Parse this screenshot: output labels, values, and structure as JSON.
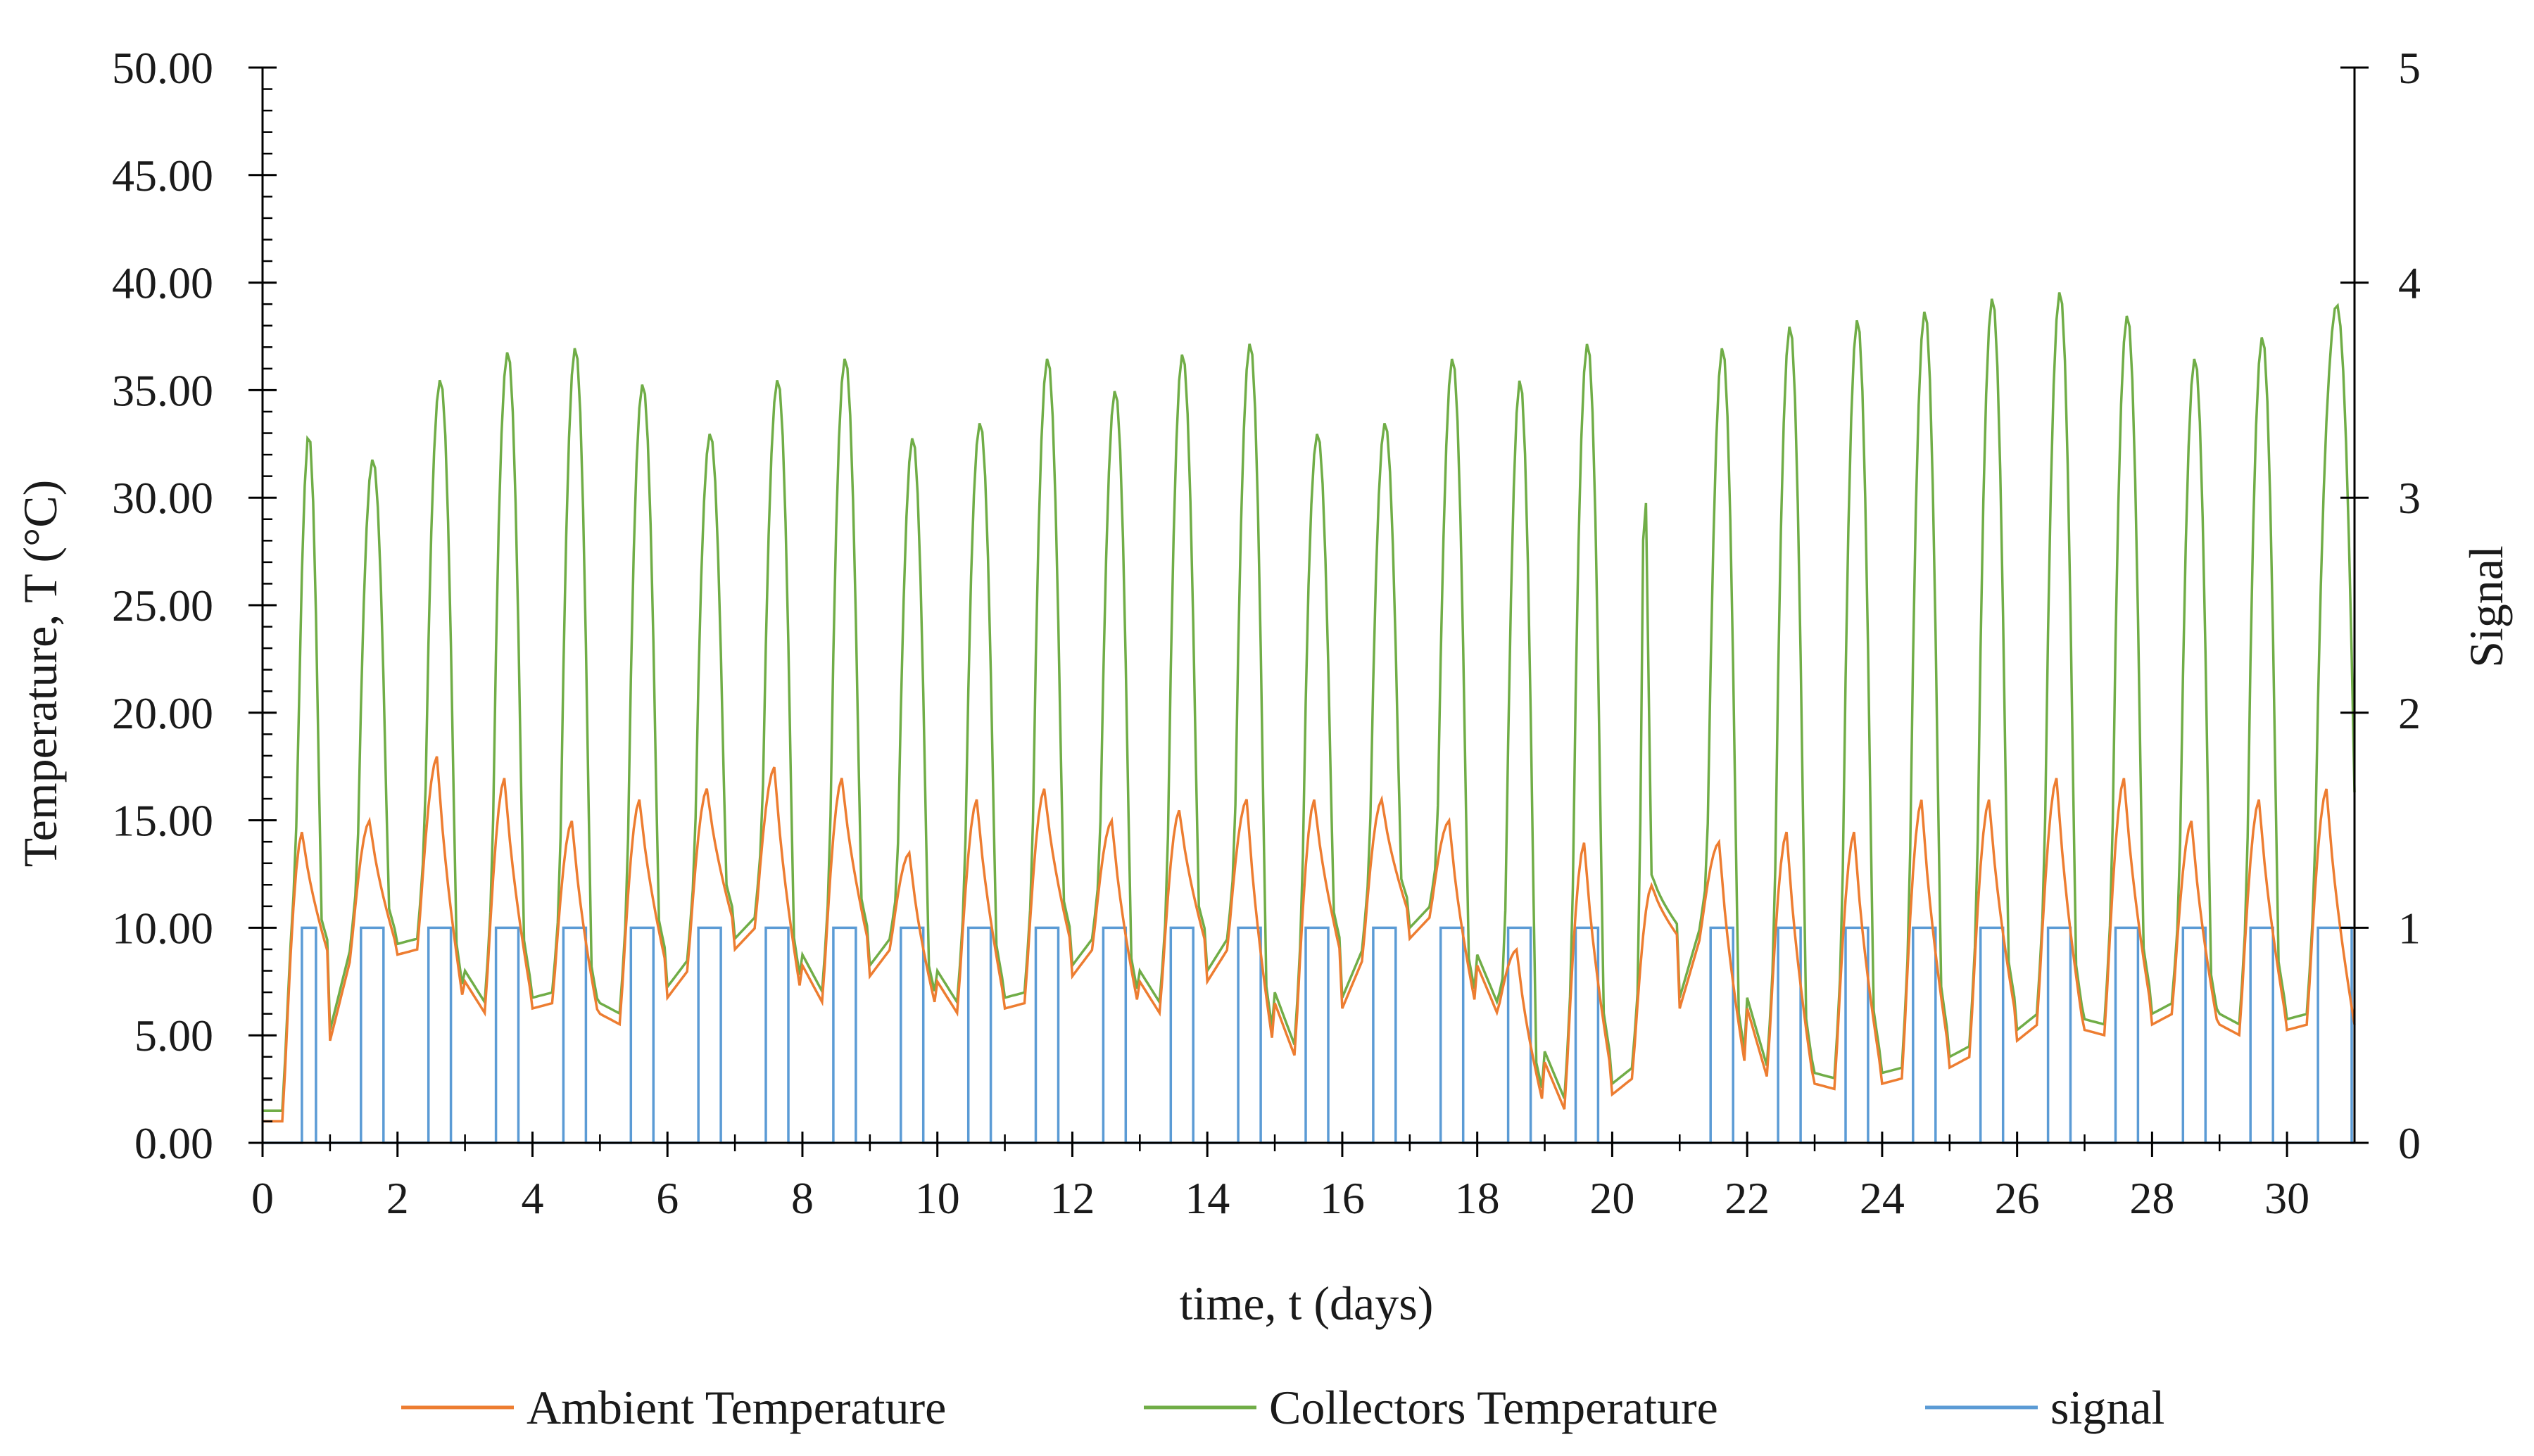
{
  "chart_data": {
    "type": "line",
    "title": "",
    "xlabel": "time, t (days)",
    "ylabel": "Temperature, T (°C)",
    "y2label": "Signal",
    "xlim": [
      0,
      31
    ],
    "ylim": [
      0,
      50
    ],
    "y2lim": [
      0,
      5
    ],
    "x_ticks": [
      0,
      2,
      4,
      6,
      8,
      10,
      12,
      14,
      16,
      18,
      20,
      22,
      24,
      26,
      28,
      30
    ],
    "x_tick_labels": [
      "0",
      "2",
      "4",
      "6",
      "8",
      "10",
      "12",
      "14",
      "16",
      "18",
      "20",
      "22",
      "24",
      "26",
      "28",
      "30"
    ],
    "y_ticks": [
      0,
      5,
      10,
      15,
      20,
      25,
      30,
      35,
      40,
      45,
      50
    ],
    "y_tick_labels": [
      "0.00",
      "5.00",
      "10.00",
      "15.00",
      "20.00",
      "25.00",
      "30.00",
      "35.00",
      "40.00",
      "45.00",
      "50.00"
    ],
    "y2_ticks": [
      0,
      1,
      2,
      3,
      4,
      5
    ],
    "y2_tick_labels": [
      "0",
      "1",
      "2",
      "3",
      "4",
      "5"
    ],
    "grid": false,
    "legend_position": "bottom",
    "colors": {
      "ambient": "#ED7D31",
      "collectors": "#70AD47",
      "signal": "#5B9BD5",
      "axis": "#000000"
    },
    "daily": [
      {
        "day": 0,
        "amb_min": 1.0,
        "amb_max": 14.5,
        "col_max": 33.0,
        "on": [
          0.55,
          0.75
        ]
      },
      {
        "day": 1,
        "amb_min": 8.5,
        "amb_max": 15.0,
        "col_max": 31.8,
        "on": [
          1.45,
          1.75
        ]
      },
      {
        "day": 2,
        "amb_min": 9.0,
        "amb_max": 18.0,
        "col_max": 35.5,
        "on": [
          2.45,
          2.75
        ]
      },
      {
        "day": 3,
        "amb_min": 6.0,
        "amb_max": 17.0,
        "col_max": 36.8,
        "on": [
          3.45,
          3.75
        ]
      },
      {
        "day": 4,
        "amb_min": 6.5,
        "amb_max": 15.0,
        "col_max": 37.0,
        "on": [
          4.45,
          4.75
        ]
      },
      {
        "day": 5,
        "amb_min": 5.5,
        "amb_max": 16.0,
        "col_max": 35.3,
        "on": [
          5.45,
          5.75
        ]
      },
      {
        "day": 6,
        "amb_min": 8.0,
        "amb_max": 16.5,
        "col_max": 33.0,
        "on": [
          6.45,
          6.75
        ]
      },
      {
        "day": 7,
        "amb_min": 10.0,
        "amb_max": 17.5,
        "col_max": 35.5,
        "on": [
          7.45,
          7.75
        ]
      },
      {
        "day": 8,
        "amb_min": 6.5,
        "amb_max": 17.0,
        "col_max": 36.5,
        "on": [
          8.45,
          8.75
        ]
      },
      {
        "day": 9,
        "amb_min": 9.0,
        "amb_max": 13.5,
        "col_max": 32.8,
        "on": [
          9.45,
          9.75
        ]
      },
      {
        "day": 10,
        "amb_min": 6.0,
        "amb_max": 16.0,
        "col_max": 33.5,
        "on": [
          10.45,
          10.75
        ]
      },
      {
        "day": 11,
        "amb_min": 6.5,
        "amb_max": 16.5,
        "col_max": 36.5,
        "on": [
          11.45,
          11.75
        ]
      },
      {
        "day": 12,
        "amb_min": 9.0,
        "amb_max": 15.0,
        "col_max": 35.0,
        "on": [
          12.45,
          12.75
        ]
      },
      {
        "day": 13,
        "amb_min": 6.0,
        "amb_max": 15.5,
        "col_max": 36.7,
        "on": [
          13.45,
          13.75
        ]
      },
      {
        "day": 14,
        "amb_min": 9.0,
        "amb_max": 16.0,
        "col_max": 37.2,
        "on": [
          14.45,
          14.75
        ]
      },
      {
        "day": 15,
        "amb_min": 4.0,
        "amb_max": 16.0,
        "col_max": 33.0,
        "on": [
          15.45,
          15.75
        ]
      },
      {
        "day": 16,
        "amb_min": 8.5,
        "amb_max": 16.0,
        "col_max": 33.5,
        "on": [
          16.45,
          16.75
        ]
      },
      {
        "day": 17,
        "amb_min": 10.5,
        "amb_max": 15.0,
        "col_max": 36.5,
        "on": [
          17.45,
          17.75
        ]
      },
      {
        "day": 18,
        "amb_min": 6.0,
        "amb_max": 9.0,
        "col_max": 35.5,
        "on": [
          18.45,
          18.75
        ]
      },
      {
        "day": 19,
        "amb_min": 1.5,
        "amb_max": 14.0,
        "col_max": 37.2,
        "on": [
          19.45,
          19.75
        ]
      },
      {
        "day": 20,
        "amb_min": 3.0,
        "amb_max": 12.0,
        "col_max": 30.5,
        "on": [
          20.45,
          20.45
        ]
      },
      {
        "day": 21,
        "amb_min": 9.5,
        "amb_max": 14.0,
        "col_max": 37.0,
        "on": [
          21.45,
          21.75
        ]
      },
      {
        "day": 22,
        "amb_min": 3.0,
        "amb_max": 14.5,
        "col_max": 38.0,
        "on": [
          22.45,
          22.75
        ]
      },
      {
        "day": 23,
        "amb_min": 2.5,
        "amb_max": 14.5,
        "col_max": 38.3,
        "on": [
          23.45,
          23.75
        ]
      },
      {
        "day": 24,
        "amb_min": 3.0,
        "amb_max": 16.0,
        "col_max": 38.7,
        "on": [
          24.45,
          24.75
        ]
      },
      {
        "day": 25,
        "amb_min": 4.0,
        "amb_max": 16.0,
        "col_max": 39.3,
        "on": [
          25.45,
          25.75
        ]
      },
      {
        "day": 26,
        "amb_min": 5.5,
        "amb_max": 17.0,
        "col_max": 39.6,
        "on": [
          26.45,
          26.75
        ]
      },
      {
        "day": 27,
        "amb_min": 5.0,
        "amb_max": 17.0,
        "col_max": 38.5,
        "on": [
          27.45,
          27.75
        ]
      },
      {
        "day": 28,
        "amb_min": 6.0,
        "amb_max": 15.0,
        "col_max": 36.5,
        "on": [
          28.45,
          28.75
        ]
      },
      {
        "day": 29,
        "amb_min": 5.0,
        "amb_max": 16.0,
        "col_max": 37.5,
        "on": [
          29.45,
          29.75
        ]
      },
      {
        "day": 30,
        "amb_min": 5.5,
        "amb_max": 16.5,
        "col_max": 39.0,
        "on": [
          30.45,
          30.95
        ]
      }
    ],
    "series": [
      {
        "name": "Ambient Temperature",
        "key": "ambient",
        "axis": "left"
      },
      {
        "name": "Collectors Temperature",
        "key": "collectors",
        "axis": "left"
      },
      {
        "name": "signal",
        "key": "signal",
        "axis": "right"
      }
    ]
  }
}
